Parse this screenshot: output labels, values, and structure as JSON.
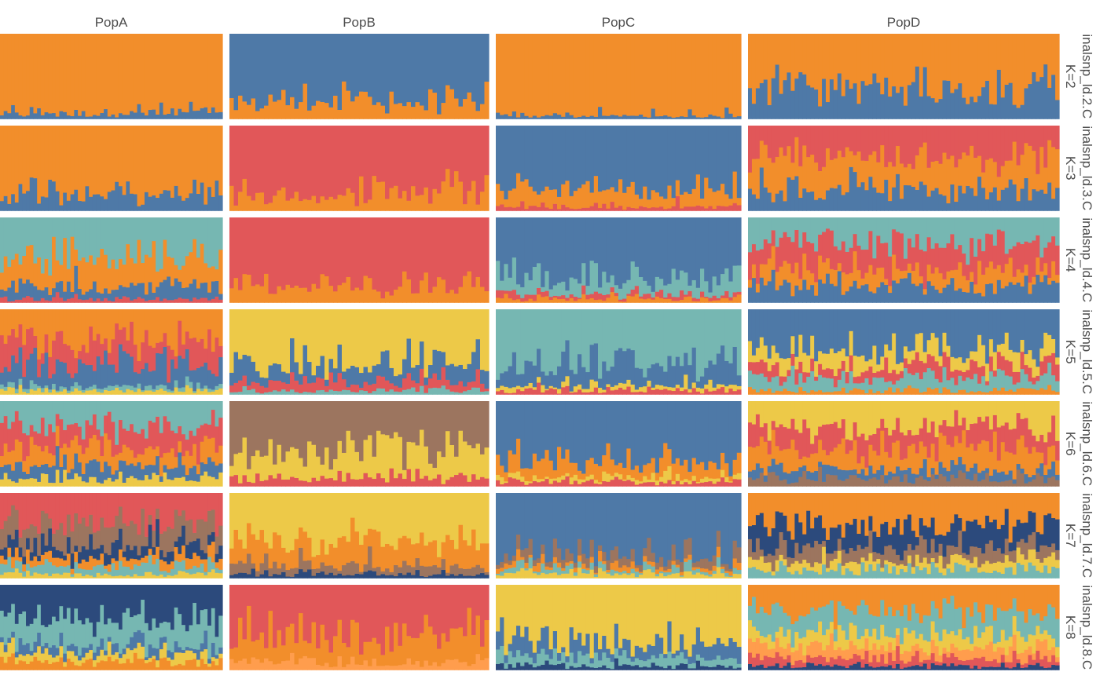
{
  "chart_data": {
    "type": "bar",
    "subtype": "stacked-admixture-barplot",
    "description_of_values": "Per-individual ancestry proportions (0-1) stacked to 1, one facet per population (columns) and per K (rows).",
    "populations": [
      "PopA",
      "PopB",
      "PopC",
      "PopD"
    ],
    "rows": [
      {
        "k": 2,
        "strip_label": "inalsnp_ld.2.C",
        "k_label": "K=2"
      },
      {
        "k": 3,
        "strip_label": "inalsnp_ld.3.C",
        "k_label": "K=3"
      },
      {
        "k": 4,
        "strip_label": "inalsnp_ld.4.C",
        "k_label": "K=4"
      },
      {
        "k": 5,
        "strip_label": "inalsnp_ld.5.C",
        "k_label": "K=5"
      },
      {
        "k": 6,
        "strip_label": "inalsnp_ld.6.C",
        "k_label": "K=6"
      },
      {
        "k": 7,
        "strip_label": "inalsnp_ld.7.C",
        "k_label": "K=7"
      },
      {
        "k": 8,
        "strip_label": "inalsnp_ld.8.C",
        "k_label": "K=8"
      }
    ],
    "cluster_colors": {
      "blue": "#4e79a7",
      "orange": "#f28e2b",
      "red": "#e15759",
      "teal": "#76b7b2",
      "yellow": "#edc948",
      "brown": "#9c755f",
      "navy": "#2c4a7c",
      "light_orange": "#ff9d4d"
    },
    "individuals_per_population": [
      60,
      60,
      60,
      80
    ],
    "approx_mean_proportions": {
      "K=2": {
        "PopA": {
          "orange": 0.93,
          "blue": 0.07
        },
        "PopB": {
          "blue": 0.8,
          "orange": 0.2
        },
        "PopC": {
          "orange": 0.96,
          "blue": 0.04
        },
        "PopD": {
          "orange": 0.63,
          "blue": 0.37
        }
      },
      "K=3": {
        "PopA": {
          "orange": 0.8,
          "blue": 0.2
        },
        "PopB": {
          "red": 0.8,
          "orange": 0.2
        },
        "PopC": {
          "blue": 0.75,
          "orange": 0.2,
          "red": 0.05
        },
        "PopD": {
          "red": 0.35,
          "orange": 0.4,
          "blue": 0.25
        }
      },
      "K=4": {
        "PopA": {
          "teal": 0.45,
          "orange": 0.35,
          "blue": 0.15,
          "red": 0.05
        },
        "PopB": {
          "red": 0.8,
          "orange": 0.2
        },
        "PopC": {
          "blue": 0.72,
          "teal": 0.18,
          "red": 0.05,
          "orange": 0.05
        },
        "PopD": {
          "teal": 0.3,
          "red": 0.3,
          "orange": 0.2,
          "blue": 0.2
        }
      },
      "K=5": {
        "PopA": {
          "orange": 0.35,
          "red": 0.3,
          "blue": 0.25,
          "teal": 0.05,
          "yellow": 0.05
        },
        "PopB": {
          "yellow": 0.65,
          "blue": 0.2,
          "red": 0.1,
          "teal": 0.05
        },
        "PopC": {
          "teal": 0.65,
          "blue": 0.25,
          "yellow": 0.05,
          "red": 0.05
        },
        "PopD": {
          "blue": 0.45,
          "yellow": 0.2,
          "red": 0.15,
          "teal": 0.15,
          "orange": 0.05
        }
      },
      "K=6": {
        "PopA": {
          "teal": 0.3,
          "red": 0.25,
          "orange": 0.2,
          "blue": 0.15,
          "yellow": 0.1
        },
        "PopB": {
          "brown": 0.6,
          "yellow": 0.3,
          "red": 0.1
        },
        "PopC": {
          "blue": 0.72,
          "orange": 0.18,
          "yellow": 0.05,
          "red": 0.05
        },
        "PopD": {
          "yellow": 0.3,
          "red": 0.25,
          "orange": 0.25,
          "blue": 0.1,
          "brown": 0.1
        }
      },
      "K=7": {
        "PopA": {
          "red": 0.35,
          "brown": 0.25,
          "navy": 0.15,
          "orange": 0.1,
          "teal": 0.1,
          "yellow": 0.05
        },
        "PopB": {
          "yellow": 0.55,
          "orange": 0.3,
          "brown": 0.1,
          "navy": 0.05
        },
        "PopC": {
          "blue": 0.75,
          "brown": 0.1,
          "orange": 0.05,
          "teal": 0.05,
          "yellow": 0.05
        },
        "PopD": {
          "orange": 0.4,
          "navy": 0.25,
          "brown": 0.15,
          "yellow": 0.1,
          "teal": 0.1
        }
      },
      "K=8": {
        "PopA": {
          "navy": 0.4,
          "teal": 0.3,
          "blue": 0.1,
          "yellow": 0.1,
          "orange": 0.1
        },
        "PopB": {
          "red": 0.55,
          "orange": 0.35,
          "light_orange": 0.1
        },
        "PopC": {
          "yellow": 0.7,
          "blue": 0.15,
          "teal": 0.1,
          "navy": 0.05
        },
        "PopD": {
          "orange": 0.3,
          "teal": 0.25,
          "yellow": 0.15,
          "light_orange": 0.15,
          "red": 0.1,
          "navy": 0.05
        }
      }
    },
    "ylim": [
      0,
      1
    ],
    "legend": "none",
    "grid": false
  }
}
